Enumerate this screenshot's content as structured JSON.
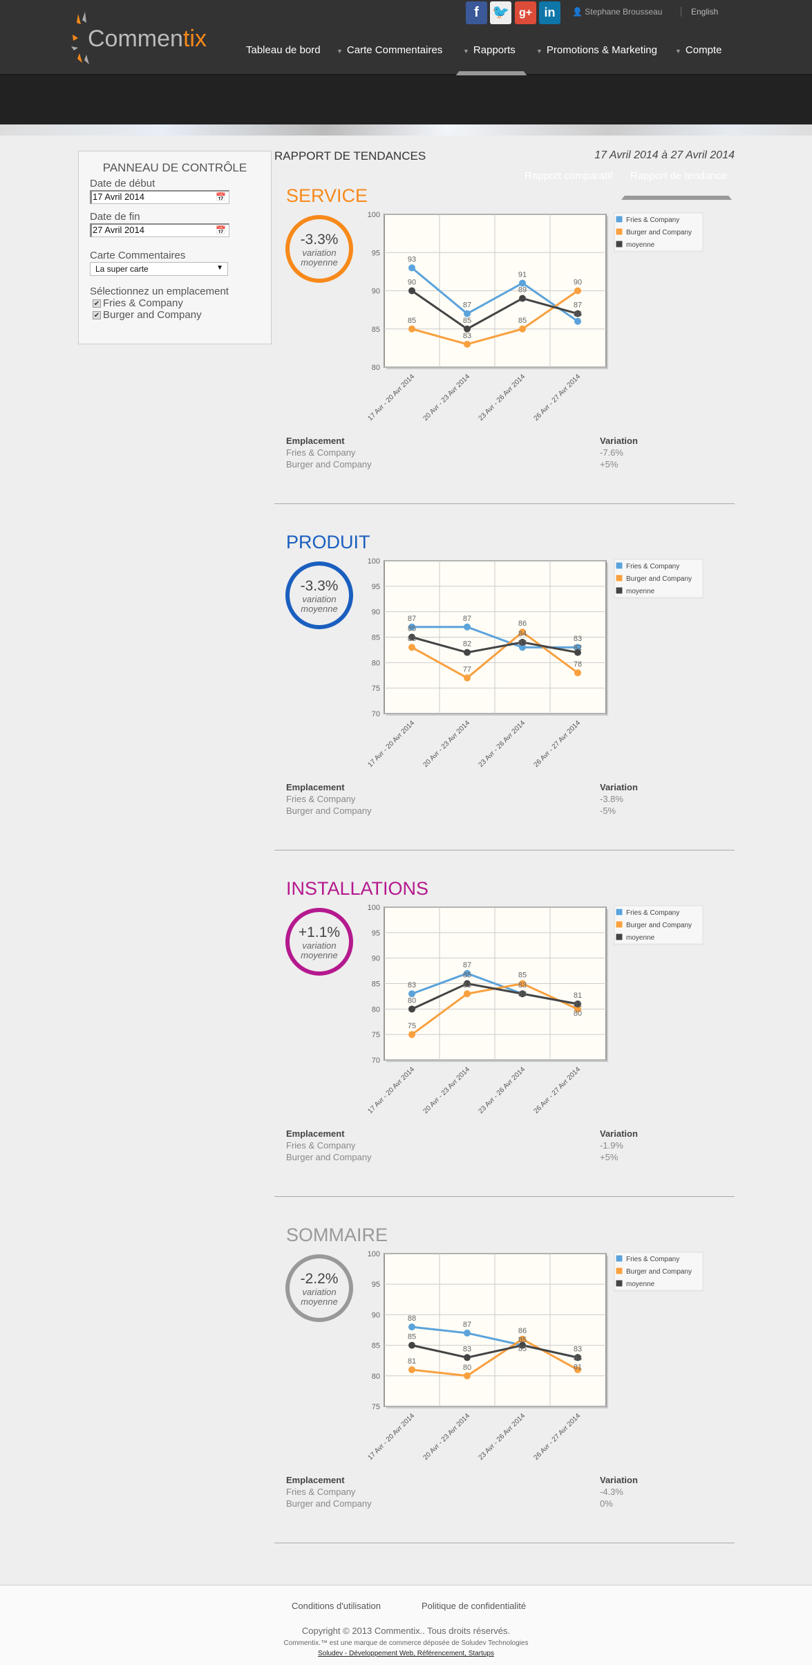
{
  "header": {
    "logo_text": "Commen",
    "logo_accent": "tix",
    "social": [
      "facebook",
      "twitter",
      "google-plus",
      "linkedin"
    ],
    "user": "Stephane Brousseau",
    "language": "English",
    "nav": [
      "Tableau de bord",
      "Carte Commentaires",
      "Rapports",
      "Promotions & Marketing",
      "Compte"
    ],
    "subnav": [
      "Rapport comparatif",
      "Rapport de tendance"
    ]
  },
  "panel": {
    "title": "PANNEAU DE CONTRÔLE",
    "start_label": "Date de début",
    "start_value": "17 Avril 2014",
    "end_label": "Date de fin",
    "end_value": "27 Avril 2014",
    "card_label": "Carte Commentaires",
    "card_value": "La super carte",
    "location_label": "Sélectionnez un emplacement",
    "locations": [
      "Fries & Company",
      "Burger and Company"
    ]
  },
  "report": {
    "title": "RAPPORT DE TENDANCES",
    "date_range": "17 Avril 2014 à 27 Avril 2014"
  },
  "table_headers": {
    "location": "Emplacement",
    "variation": "Variation"
  },
  "circle_label": [
    "variation",
    "moyenne"
  ],
  "series_colors": {
    "Fries & Company": "#5ba3db",
    "Burger and Company": "#f9a03f",
    "moyenne": "#444444"
  },
  "sections": [
    {
      "title": "SERVICE",
      "color": "#f7891a",
      "avg": "-3.3%",
      "rows": [
        [
          "Fries & Company",
          "-7.6%"
        ],
        [
          "Burger and Company",
          "+5%"
        ]
      ]
    },
    {
      "title": "PRODUIT",
      "color": "#1a5fbf",
      "avg": "-3.3%",
      "rows": [
        [
          "Fries & Company",
          "-3.8%"
        ],
        [
          "Burger and Company",
          "-5%"
        ]
      ]
    },
    {
      "title": "INSTALLATIONS",
      "color": "#b5198e",
      "avg": "+1.1%",
      "rows": [
        [
          "Fries & Company",
          "-1.9%"
        ],
        [
          "Burger and Company",
          "+5%"
        ]
      ]
    },
    {
      "title": "SOMMAIRE",
      "color": "#999999",
      "avg": "-2.2%",
      "rows": [
        [
          "Fries & Company",
          "-4.3%"
        ],
        [
          "Burger and Company",
          "0%"
        ]
      ]
    }
  ],
  "chart_data": [
    {
      "type": "line",
      "categories": [
        "17 Avr - 20 Avr 2014",
        "20 Avr - 23 Avr 2014",
        "23 Avr - 26 Avr 2014",
        "26 Avr - 27 Avr 2014"
      ],
      "ylim": [
        80,
        100
      ],
      "yticks": [
        80,
        85,
        90,
        95,
        100
      ],
      "grid": true,
      "legend": "right",
      "series": [
        {
          "name": "Fries & Company",
          "values": [
            93,
            87,
            91,
            86
          ]
        },
        {
          "name": "Burger and Company",
          "values": [
            85,
            83,
            85,
            90
          ]
        },
        {
          "name": "moyenne",
          "values": [
            90,
            85,
            89,
            87
          ]
        }
      ]
    },
    {
      "type": "line",
      "categories": [
        "17 Avr - 20 Avr 2014",
        "20 Avr - 23 Avr 2014",
        "23 Avr - 26 Avr 2014",
        "26 Avr - 27 Avr 2014"
      ],
      "ylim": [
        70,
        100
      ],
      "yticks": [
        70,
        75,
        80,
        85,
        90,
        95,
        100
      ],
      "grid": true,
      "legend": "right",
      "series": [
        {
          "name": "Fries & Company",
          "values": [
            87,
            87,
            83,
            83
          ]
        },
        {
          "name": "Burger and Company",
          "values": [
            83,
            77,
            86,
            78
          ]
        },
        {
          "name": "moyenne",
          "values": [
            85,
            82,
            84,
            82
          ]
        }
      ]
    },
    {
      "type": "line",
      "categories": [
        "17 Avr - 20 Avr 2014",
        "20 Avr - 23 Avr 2014",
        "23 Avr - 26 Avr 2014",
        "26 Avr - 27 Avr 2014"
      ],
      "ylim": [
        70,
        100
      ],
      "yticks": [
        70,
        75,
        80,
        85,
        90,
        95,
        100
      ],
      "grid": true,
      "legend": "right",
      "series": [
        {
          "name": "Fries & Company",
          "values": [
            83,
            87,
            83,
            81
          ]
        },
        {
          "name": "Burger and Company",
          "values": [
            75,
            83,
            85,
            80
          ]
        },
        {
          "name": "moyenne",
          "values": [
            80,
            85,
            83,
            81
          ]
        }
      ]
    },
    {
      "type": "line",
      "categories": [
        "17 Avr - 20 Avr 2014",
        "20 Avr - 23 Avr 2014",
        "23 Avr - 26 Avr 2014",
        "26 Avr - 27 Avr 2014"
      ],
      "ylim": [
        75,
        100
      ],
      "yticks": [
        75,
        80,
        85,
        90,
        95,
        100
      ],
      "grid": true,
      "legend": "right",
      "series": [
        {
          "name": "Fries & Company",
          "values": [
            88,
            87,
            85,
            83
          ]
        },
        {
          "name": "Burger and Company",
          "values": [
            81,
            80,
            86,
            81
          ]
        },
        {
          "name": "moyenne",
          "values": [
            85,
            83,
            85,
            83
          ]
        }
      ]
    }
  ],
  "footer": {
    "terms": "Conditions d'utilisation",
    "privacy": "Politique de confidentialité",
    "copyright": "Copyright © 2013 Commentix.. Tous droits réservés.",
    "trademark": "Commentix.™ est une marque de commerce déposée de Soludev Technologies",
    "soludev": "Soludev - Développement Web, Référencement, Startups"
  }
}
